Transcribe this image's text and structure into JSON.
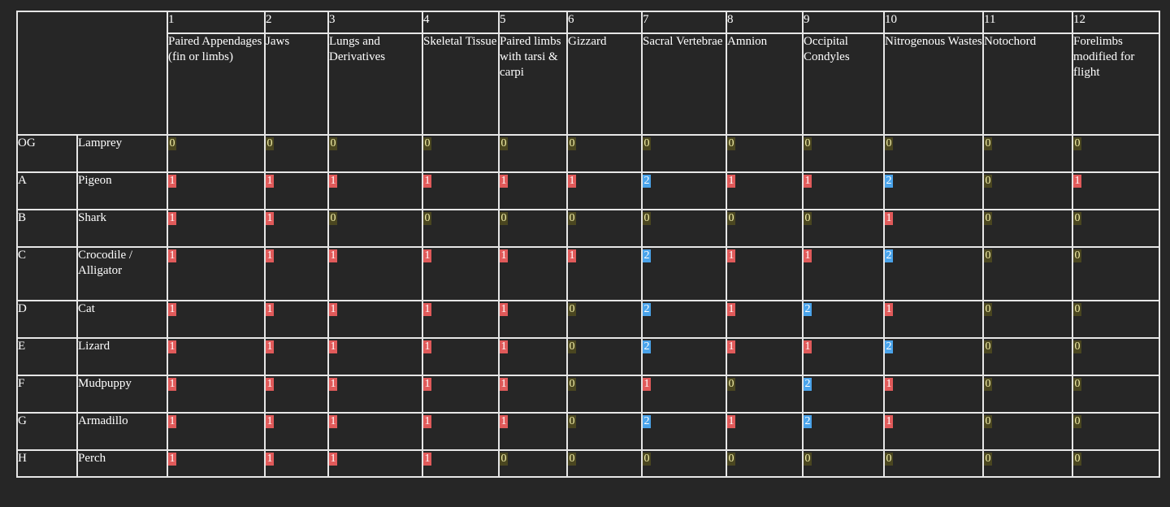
{
  "traits": [
    {
      "num": "1",
      "name": "Paired Appendages (fin or limbs)"
    },
    {
      "num": "2",
      "name": "Jaws"
    },
    {
      "num": "3",
      "name": "Lungs and Derivatives"
    },
    {
      "num": "4",
      "name": "Skeletal Tissue"
    },
    {
      "num": "5",
      "name": "Paired limbs with tarsi & carpi"
    },
    {
      "num": "6",
      "name": "Gizzard"
    },
    {
      "num": "7",
      "name": "Sacral Vertebrae"
    },
    {
      "num": "8",
      "name": "Amnion"
    },
    {
      "num": "9",
      "name": "Occipital Condyles"
    },
    {
      "num": "10",
      "name": "Nitrogenous Wastes"
    },
    {
      "num": "11",
      "name": "Notochord"
    },
    {
      "num": "12",
      "name": "Forelimbs modified for flight"
    }
  ],
  "rows": [
    {
      "id": "OG",
      "taxon": "Lamprey",
      "values": [
        "0",
        "0",
        "0",
        "0",
        "0",
        "0",
        "0",
        "0",
        "0",
        "0",
        "0",
        "0"
      ]
    },
    {
      "id": "A",
      "taxon": "Pigeon",
      "values": [
        "1",
        "1",
        "1",
        "1",
        "1",
        "1",
        "2",
        "1",
        "1",
        "2",
        "0",
        "1"
      ]
    },
    {
      "id": "B",
      "taxon": "Shark",
      "values": [
        "1",
        "1",
        "0",
        "0",
        "0",
        "0",
        "0",
        "0",
        "0",
        "1",
        "0",
        "0"
      ]
    },
    {
      "id": "C",
      "taxon": "Crocodile / Alligator",
      "values": [
        "1",
        "1",
        "1",
        "1",
        "1",
        "1",
        "2",
        "1",
        "1",
        "2",
        "0",
        "0"
      ]
    },
    {
      "id": "D",
      "taxon": "Cat",
      "values": [
        "1",
        "1",
        "1",
        "1",
        "1",
        "0",
        "2",
        "1",
        "2",
        "1",
        "0",
        "0"
      ]
    },
    {
      "id": "E",
      "taxon": "Lizard",
      "values": [
        "1",
        "1",
        "1",
        "1",
        "1",
        "0",
        "2",
        "1",
        "1",
        "2",
        "0",
        "0"
      ]
    },
    {
      "id": "F",
      "taxon": "Mudpuppy",
      "values": [
        "1",
        "1",
        "1",
        "1",
        "1",
        "0",
        "1",
        "0",
        "2",
        "1",
        "0",
        "0"
      ]
    },
    {
      "id": "G",
      "taxon": "Armadillo",
      "values": [
        "1",
        "1",
        "1",
        "1",
        "1",
        "0",
        "2",
        "1",
        "2",
        "1",
        "0",
        "0"
      ]
    },
    {
      "id": "H",
      "taxon": "Perch",
      "values": [
        "1",
        "1",
        "1",
        "1",
        "0",
        "0",
        "0",
        "0",
        "0",
        "0",
        "0",
        "0"
      ]
    }
  ],
  "colors": {
    "0": "#4a4620",
    "1": "#e05a5a",
    "2": "#4aa3ea"
  }
}
